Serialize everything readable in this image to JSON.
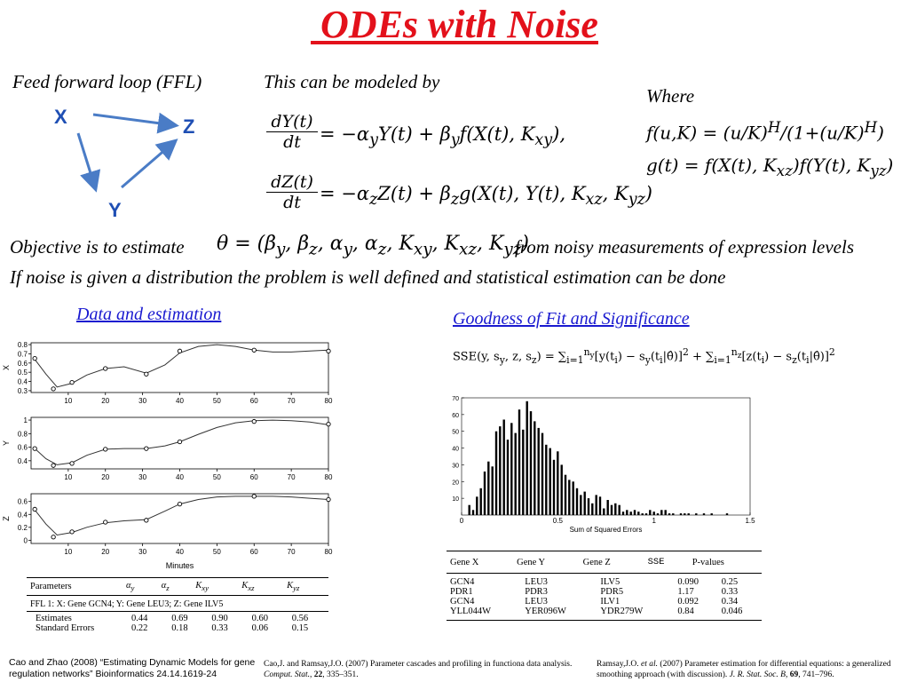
{
  "title": " ODEs with Noise",
  "ffl_label": "Feed forward loop (FFL)",
  "modeled_label": "This can be modeled by",
  "where_label": "Where",
  "nodes": {
    "x": "X",
    "y": "Y",
    "z": "Z"
  },
  "equations": {
    "dY_num": "dY(t)",
    "dY_den": "dt",
    "dY_rhs": "= −α<sub>y</sub>Y(t) + β<sub>y</sub>f(X(t), K<sub>xy</sub>),",
    "dZ_num": "dZ(t)",
    "dZ_den": "dt",
    "dZ_rhs": "= −α<sub>z</sub>Z(t) + β<sub>z</sub>g(X(t), Y(t), K<sub>xz</sub>, K<sub>yz</sub>)",
    "f_def": "f(u,K) = (u/K)<sup>H</sup>/(1+(u/K)<sup>H</sup>)",
    "g_def": "g(t) = f(X(t), K<sub>xz</sub>)f(Y(t), K<sub>yz</sub>)",
    "theta": "θ = (β<sub>y</sub>, β<sub>z</sub>, α<sub>y</sub>, α<sub>z</sub>, K<sub>xy</sub>, K<sub>xz</sub>, K<sub>yz</sub>)"
  },
  "objective_pre": "Objective is to estimate",
  "objective_post": "from noisy measurements of expression levels",
  "noise_line": "If noise is given a distribution the problem is well defined and statistical estimation can be done",
  "data_link": "Data and estimation",
  "gof_link": "Goodness of Fit and Significance",
  "sse_formula": "SSE(y, s<sub>y</sub>, z, s<sub>z</sub>) = ∑<sub>i=1</sub><sup>n<sub>y</sub></sup>[y(t<sub>i</sub>) − s<sub>y</sub>(t<sub>i</sub>|θ̂)]<sup>2</sup> + ∑<sub>i=1</sub><sup>n<sub>z</sub></sup>[z(t<sub>i</sub>) − s<sub>z</sub>(t<sub>i</sub>|θ̂)]<sup>2</sup>",
  "time_plots": {
    "xlabel": "Minutes",
    "x_ticks": [
      "10",
      "20",
      "30",
      "40",
      "50",
      "60",
      "70",
      "80"
    ],
    "panels": [
      {
        "ylabel": "X",
        "yticks": [
          "0.8",
          "0.7",
          "0.6",
          "0.5",
          "0.4",
          "0.3"
        ],
        "points": [
          [
            1,
            0.65
          ],
          [
            6,
            0.32
          ],
          [
            11,
            0.39
          ],
          [
            20,
            0.54
          ],
          [
            31,
            0.48
          ],
          [
            40,
            0.73
          ],
          [
            60,
            0.74
          ],
          [
            80,
            0.73
          ]
        ],
        "curve": [
          [
            1,
            0.64
          ],
          [
            4,
            0.48
          ],
          [
            7,
            0.34
          ],
          [
            11,
            0.38
          ],
          [
            15,
            0.47
          ],
          [
            20,
            0.54
          ],
          [
            25,
            0.56
          ],
          [
            31,
            0.49
          ],
          [
            36,
            0.58
          ],
          [
            40,
            0.71
          ],
          [
            45,
            0.78
          ],
          [
            50,
            0.8
          ],
          [
            55,
            0.78
          ],
          [
            60,
            0.74
          ],
          [
            65,
            0.72
          ],
          [
            70,
            0.72
          ],
          [
            75,
            0.73
          ],
          [
            80,
            0.74
          ]
        ]
      },
      {
        "ylabel": "Y",
        "yticks": [
          "1",
          "0.8",
          "0.6",
          "0.4"
        ],
        "points": [
          [
            1,
            0.58
          ],
          [
            6,
            0.33
          ],
          [
            11,
            0.36
          ],
          [
            20,
            0.57
          ],
          [
            31,
            0.58
          ],
          [
            40,
            0.68
          ],
          [
            60,
            0.98
          ],
          [
            80,
            0.94
          ]
        ],
        "curve": [
          [
            1,
            0.58
          ],
          [
            4,
            0.43
          ],
          [
            7,
            0.34
          ],
          [
            11,
            0.37
          ],
          [
            15,
            0.48
          ],
          [
            20,
            0.57
          ],
          [
            25,
            0.58
          ],
          [
            31,
            0.58
          ],
          [
            36,
            0.62
          ],
          [
            40,
            0.68
          ],
          [
            45,
            0.79
          ],
          [
            50,
            0.89
          ],
          [
            55,
            0.96
          ],
          [
            60,
            0.99
          ],
          [
            65,
            1.0
          ],
          [
            70,
            0.99
          ],
          [
            75,
            0.97
          ],
          [
            80,
            0.93
          ]
        ]
      },
      {
        "ylabel": "Z",
        "yticks": [
          "0.6",
          "0.4",
          "0.2",
          "0"
        ],
        "points": [
          [
            1,
            0.48
          ],
          [
            6,
            0.05
          ],
          [
            11,
            0.13
          ],
          [
            20,
            0.28
          ],
          [
            31,
            0.31
          ],
          [
            40,
            0.56
          ],
          [
            60,
            0.68
          ],
          [
            80,
            0.63
          ]
        ],
        "curve": [
          [
            1,
            0.47
          ],
          [
            4,
            0.25
          ],
          [
            7,
            0.08
          ],
          [
            11,
            0.12
          ],
          [
            15,
            0.2
          ],
          [
            20,
            0.27
          ],
          [
            25,
            0.3
          ],
          [
            31,
            0.32
          ],
          [
            36,
            0.45
          ],
          [
            40,
            0.56
          ],
          [
            45,
            0.63
          ],
          [
            50,
            0.67
          ],
          [
            55,
            0.68
          ],
          [
            60,
            0.68
          ],
          [
            65,
            0.68
          ],
          [
            70,
            0.67
          ],
          [
            75,
            0.65
          ],
          [
            80,
            0.63
          ]
        ]
      }
    ]
  },
  "param_table": {
    "header": [
      "Parameters",
      "α<sub>y</sub>",
      "α<sub>z</sub>",
      "K<sub>xy</sub>",
      "K<sub>xz</sub>",
      "K<sub>yz</sub>"
    ],
    "subtitle": "FFL 1: X: Gene GCN4; Y: Gene LEU3; Z: Gene ILV5",
    "rows": [
      [
        "Estimates",
        "0.44",
        "0.69",
        "0.90",
        "0.60",
        "0.56"
      ],
      [
        "Standard Errors",
        "0.22",
        "0.18",
        "0.33",
        "0.06",
        "0.15"
      ]
    ]
  },
  "chart_data": {
    "type": "bar",
    "xlabel": "Sum of Squared Errors",
    "xlim": [
      0,
      1.5
    ],
    "ylim": [
      0,
      70
    ],
    "x_ticks": [
      "0",
      "0.5",
      "1",
      "1.5"
    ],
    "y_ticks": [
      "70",
      "60",
      "50",
      "40",
      "30",
      "20",
      "10"
    ],
    "x": [
      0.04,
      0.06,
      0.08,
      0.1,
      0.12,
      0.14,
      0.16,
      0.18,
      0.2,
      0.22,
      0.24,
      0.26,
      0.28,
      0.3,
      0.32,
      0.34,
      0.36,
      0.38,
      0.4,
      0.42,
      0.44,
      0.46,
      0.48,
      0.5,
      0.52,
      0.54,
      0.56,
      0.58,
      0.6,
      0.62,
      0.64,
      0.66,
      0.68,
      0.7,
      0.72,
      0.74,
      0.76,
      0.78,
      0.8,
      0.82,
      0.84,
      0.86,
      0.88,
      0.9,
      0.92,
      0.94,
      0.96,
      0.98,
      1.0,
      1.02,
      1.04,
      1.06,
      1.08,
      1.1,
      1.14,
      1.16,
      1.18,
      1.22,
      1.26,
      1.3,
      1.38
    ],
    "values": [
      6,
      3,
      11,
      16,
      26,
      32,
      29,
      50,
      53,
      57,
      45,
      55,
      49,
      63,
      51,
      68,
      62,
      56,
      52,
      49,
      42,
      40,
      33,
      38,
      30,
      24,
      21,
      20,
      16,
      12,
      14,
      10,
      7,
      12,
      11,
      4,
      9,
      6,
      7,
      6,
      2,
      3,
      2,
      3,
      2,
      1,
      1,
      3,
      2,
      1,
      3,
      3,
      1,
      1,
      1,
      1,
      1,
      1,
      1,
      1,
      1
    ]
  },
  "gof_table": {
    "header": [
      "Gene X",
      "Gene Y",
      "Gene Z",
      "SSE",
      "P-values"
    ],
    "rows": [
      [
        "GCN4",
        "LEU3",
        "ILV5",
        "0.090",
        "0.25"
      ],
      [
        "PDR1",
        "PDR3",
        "PDR5",
        "1.17",
        "0.33"
      ],
      [
        "GCN4",
        "LEU3",
        "ILV1",
        "0.092",
        "0.34"
      ],
      [
        "YLL044W",
        "YER096W",
        "YDR279W",
        "0.84",
        "0.046"
      ]
    ]
  },
  "references": {
    "cao_zhao": "Cao and Zhao (2008) “Estimating Dynamic Models for gene regulation networks” Bioinformatics 24.14.1619-24",
    "cao_ramsay": "Cao,J. and Ramsay,J.O. (2007) Parameter cascades and profiling in functiona data analysis. <i>Comput. Stat.</i>, <b>22</b>, 335–351.",
    "ramsay": "Ramsay,J.O. <i>et al.</i> (2007) Parameter estimation for differential equations: a generalized smoothing approach (with discussion). <i>J. R. Stat. Soc. B</i>, <b>69</b>, 741–796."
  },
  "colors": {
    "title": "#e3111b",
    "node": "#1f4fb4",
    "arrow": "#4a7cc6",
    "link": "#1a1ad0"
  }
}
